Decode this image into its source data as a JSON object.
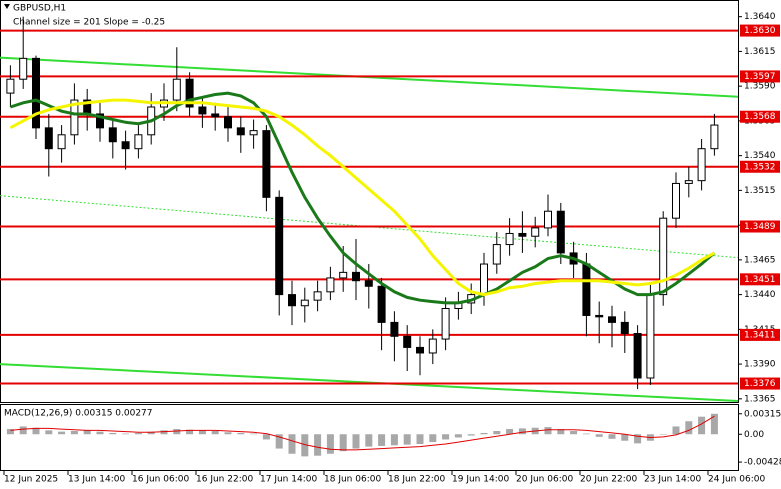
{
  "chart_data": {
    "type": "candlestick",
    "title": "GBPUSD,H1",
    "subtitle": "Channel size = 201 Slope = -0.25",
    "categories": [
      "12 Jun 2025",
      null,
      null,
      null,
      null,
      "13 Jun 14:00",
      null,
      null,
      null,
      null,
      "16 Jun 06:00",
      null,
      null,
      null,
      null,
      "16 Jun 22:00",
      null,
      null,
      null,
      null,
      "17 Jun 14:00",
      null,
      null,
      null,
      null,
      "18 Jun 06:00",
      null,
      null,
      null,
      null,
      "18 Jun 22:00",
      null,
      null,
      null,
      null,
      "19 Jun 14:00",
      null,
      null,
      null,
      null,
      "20 Jun 06:00",
      null,
      null,
      null,
      null,
      "20 Jun 22:00",
      null,
      null,
      null,
      null,
      "23 Jun 14:00",
      null,
      null,
      null,
      null,
      "24 Jun 06:00"
    ],
    "open": [
      1.3585,
      1.3595,
      1.361,
      1.356,
      1.3545,
      1.3555,
      1.358,
      1.357,
      1.356,
      1.355,
      1.3545,
      1.3555,
      1.3575,
      1.358,
      1.3595,
      1.3575,
      1.357,
      1.3568,
      1.356,
      1.3555,
      1.3558,
      1.351,
      1.344,
      1.3432,
      1.3436,
      1.3442,
      1.3452,
      1.3456,
      1.345,
      1.3446,
      1.342,
      1.341,
      1.3402,
      1.3398,
      1.3408,
      1.343,
      1.3434,
      1.344,
      1.3462,
      1.3476,
      1.3484,
      1.3482,
      1.3488,
      1.35,
      1.347,
      1.3462,
      1.3425,
      1.3424,
      1.342,
      1.3412,
      1.338,
      1.344,
      1.3495,
      1.352,
      1.3522,
      1.3545
    ],
    "high": [
      1.3605,
      1.364,
      1.3612,
      1.357,
      1.3562,
      1.3592,
      1.3588,
      1.3578,
      1.3566,
      1.3558,
      1.3562,
      1.3585,
      1.3592,
      1.3618,
      1.36,
      1.3582,
      1.3578,
      1.3575,
      1.3568,
      1.3566,
      1.3562,
      1.3515,
      1.345,
      1.3445,
      1.345,
      1.346,
      1.3475,
      1.348,
      1.3462,
      1.3452,
      1.3428,
      1.3418,
      1.341,
      1.3415,
      1.3438,
      1.3442,
      1.3448,
      1.347,
      1.3485,
      1.3495,
      1.35,
      1.3496,
      1.3512,
      1.3506,
      1.3478,
      1.347,
      1.3435,
      1.3432,
      1.3428,
      1.3418,
      1.3448,
      1.35,
      1.3528,
      1.3532,
      1.3552,
      1.357
    ],
    "low": [
      1.3575,
      1.3588,
      1.3552,
      1.3525,
      1.3535,
      1.3548,
      1.3558,
      1.355,
      1.3538,
      1.353,
      1.3538,
      1.3548,
      1.3565,
      1.3572,
      1.3568,
      1.356,
      1.3558,
      1.355,
      1.3542,
      1.3545,
      1.35,
      1.3425,
      1.3418,
      1.342,
      1.3428,
      1.3436,
      1.3442,
      1.3436,
      1.343,
      1.34,
      1.3392,
      1.3385,
      1.3382,
      1.339,
      1.34,
      1.3422,
      1.3426,
      1.3432,
      1.3455,
      1.3468,
      1.347,
      1.3474,
      1.3482,
      1.3462,
      1.3452,
      1.341,
      1.3405,
      1.3402,
      1.3398,
      1.3372,
      1.3375,
      1.3432,
      1.3488,
      1.351,
      1.3515,
      1.354
    ],
    "close": [
      1.3595,
      1.361,
      1.356,
      1.3545,
      1.3555,
      1.358,
      1.357,
      1.356,
      1.355,
      1.3545,
      1.3555,
      1.3575,
      1.358,
      1.3595,
      1.3575,
      1.357,
      1.3568,
      1.356,
      1.3555,
      1.3558,
      1.351,
      1.344,
      1.3432,
      1.3436,
      1.3442,
      1.3452,
      1.3456,
      1.345,
      1.3446,
      1.342,
      1.341,
      1.3402,
      1.3398,
      1.3408,
      1.343,
      1.3434,
      1.344,
      1.3462,
      1.3476,
      1.3484,
      1.3482,
      1.3488,
      1.35,
      1.347,
      1.3462,
      1.3425,
      1.3424,
      1.342,
      1.3412,
      1.338,
      1.344,
      1.3495,
      1.352,
      1.3522,
      1.3545,
      1.3562
    ],
    "up_color": "#ffffff",
    "down_color": "#000000",
    "series": [
      {
        "color": "#1a7a1a",
        "values": [
          1.3575,
          1.3578,
          1.358,
          1.3576,
          1.3572,
          1.357,
          1.357,
          1.3568,
          1.3566,
          1.3564,
          1.3563,
          1.3565,
          1.357,
          1.3576,
          1.358,
          1.3582,
          1.3584,
          1.3585,
          1.3583,
          1.3578,
          1.3568,
          1.3548,
          1.3528,
          1.351,
          1.3495,
          1.3482,
          1.347,
          1.3462,
          1.3455,
          1.3448,
          1.3442,
          1.3438,
          1.3436,
          1.3435,
          1.3434,
          1.3434,
          1.3436,
          1.344,
          1.3444,
          1.345,
          1.3456,
          1.346,
          1.3466,
          1.3468,
          1.3466,
          1.3462,
          1.3456,
          1.345,
          1.3444,
          1.344,
          1.344,
          1.3442,
          1.3448,
          1.3455,
          1.3462,
          1.347
        ]
      },
      {
        "color": "#f5f500",
        "values": [
          1.356,
          1.3565,
          1.357,
          1.3573,
          1.3575,
          1.3577,
          1.3578,
          1.3579,
          1.358,
          1.358,
          1.3579,
          1.3578,
          1.3578,
          1.3578,
          1.3578,
          1.3578,
          1.3577,
          1.3576,
          1.3575,
          1.3574,
          1.3572,
          1.3568,
          1.3562,
          1.3555,
          1.3547,
          1.354,
          1.3532,
          1.3524,
          1.3516,
          1.3508,
          1.35,
          1.349,
          1.348,
          1.3468,
          1.3458,
          1.3448,
          1.3442,
          1.344,
          1.3442,
          1.3445,
          1.3446,
          1.3448,
          1.3449,
          1.345,
          1.345,
          1.345,
          1.345,
          1.3449,
          1.3448,
          1.3447,
          1.3448,
          1.345,
          1.3454,
          1.3459,
          1.3465,
          1.347
        ]
      }
    ],
    "channel_lines": [
      {
        "color": "#33dd33",
        "values": [
          1.36105,
          1.35824
        ]
      },
      {
        "color": "#33dd33",
        "values": [
          1.339,
          1.33634
        ]
      },
      {
        "color": "#33dd33",
        "dotted": true,
        "values": [
          1.35112,
          1.34666
        ]
      }
    ],
    "levels": {
      "color": "#e50000",
      "values": [
        {
          "value": 1.363,
          "label": "1.3630"
        },
        {
          "value": 1.3597,
          "label": "1.3597"
        },
        {
          "value": 1.3568,
          "label": "1.3568"
        },
        {
          "value": 1.3532,
          "label": "1.3532"
        },
        {
          "value": 1.3489,
          "label": "1.3489"
        },
        {
          "value": 1.3451,
          "label": "1.3451"
        },
        {
          "value": 1.3411,
          "label": "1.3411"
        },
        {
          "value": 1.3376,
          "label": "1.3376"
        }
      ]
    },
    "ylim": [
      1.3362,
      1.3652
    ],
    "yticks": [
      {
        "value": 1.364,
        "label": "1.3640"
      },
      1.3615,
      {
        "value": 1.359,
        "label": "1.3590"
      },
      1.3565,
      {
        "value": 1.354,
        "label": "1.3540"
      },
      1.3515,
      {
        "value": 1.349,
        "label": "1.3490"
      },
      1.3465,
      {
        "value": 1.344,
        "label": "1.3440"
      },
      1.3415,
      {
        "value": 1.339,
        "label": "1.3390"
      },
      1.3365
    ],
    "macd": {
      "title": "MACD(12,26,9) 0.00315 0.00277",
      "histogram_color": "#a8a8a8",
      "signal_color": "#e00000",
      "histogram": [
        0.0008,
        0.0012,
        0.001,
        0.0006,
        0.0004,
        0.0005,
        0.0006,
        0.0004,
        0.0002,
        0.0001,
        0.0002,
        0.0004,
        0.0006,
        0.0008,
        0.0007,
        0.0006,
        0.0005,
        0.0003,
        0.0002,
        0.0001,
        -0.0008,
        -0.0022,
        -0.003,
        -0.0034,
        -0.0033,
        -0.003,
        -0.0026,
        -0.0022,
        -0.0019,
        -0.0018,
        -0.0017,
        -0.0016,
        -0.0015,
        -0.0012,
        -0.0008,
        -0.0005,
        -0.0002,
        0.0002,
        0.0005,
        0.0008,
        0.0009,
        0.001,
        0.0011,
        0.0008,
        0.0005,
        0.0001,
        -0.0004,
        -0.0007,
        -0.001,
        -0.0014,
        -0.001,
        0.0,
        0.0012,
        0.002,
        0.0027,
        0.00315
      ],
      "signal": [
        0.0006,
        0.0008,
        0.0009,
        0.0009,
        0.0008,
        0.0007,
        0.0006,
        0.0006,
        0.0005,
        0.0004,
        0.0003,
        0.0003,
        0.0004,
        0.0005,
        0.0006,
        0.0006,
        0.0006,
        0.0005,
        0.0004,
        0.0003,
        0.0001,
        -0.0004,
        -0.001,
        -0.0016,
        -0.002,
        -0.0023,
        -0.0024,
        -0.0024,
        -0.0023,
        -0.0022,
        -0.0021,
        -0.002,
        -0.0019,
        -0.0017,
        -0.0015,
        -0.0012,
        -0.0009,
        -0.0006,
        -0.0003,
        0.0,
        0.0003,
        0.0005,
        0.0007,
        0.0007,
        0.0007,
        0.0006,
        0.0004,
        0.0002,
        0.0,
        -0.0003,
        -0.0005,
        -0.0004,
        -0.0001,
        0.0006,
        0.0016,
        0.00277
      ],
      "ylim": [
        -0.0055,
        0.0045
      ],
      "yticks": [
        0.00315,
        {
          "value": 0,
          "label": "0.00"
        },
        -0.00428
      ]
    }
  }
}
